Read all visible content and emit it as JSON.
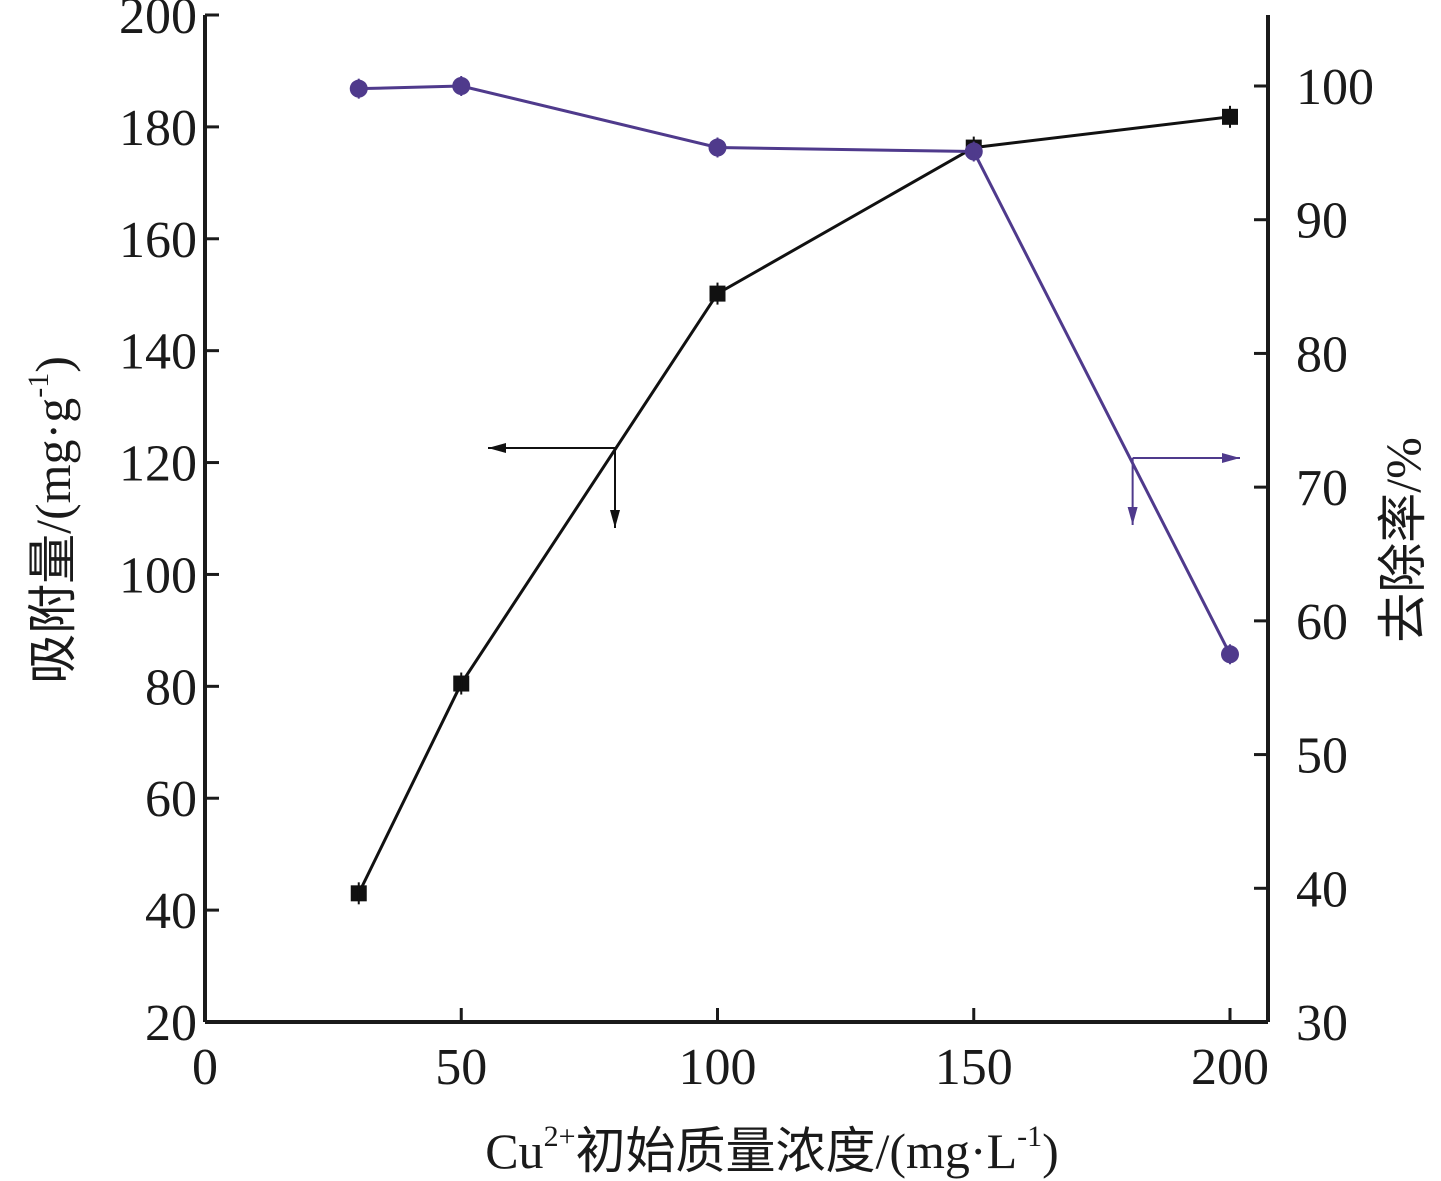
{
  "chart_data": {
    "type": "line",
    "xlabel": {
      "main": "Cu",
      "sup1": "2+",
      "rest": "初始质量浓度/(mg·L",
      "sup2": "-1",
      "end": ")"
    },
    "ylabel_left": {
      "main": "吸附量/(mg·g",
      "sup": "-1",
      "end": ")"
    },
    "ylabel_right": "去除率/%",
    "xlim": [
      0,
      200
    ],
    "ylim_left": [
      20,
      200
    ],
    "ylim_right": [
      30,
      105
    ],
    "x_ticks": [
      "0",
      "50",
      "100",
      "150",
      "200"
    ],
    "y_left_ticks": [
      "20",
      "40",
      "60",
      "80",
      "100",
      "120",
      "140",
      "160",
      "180",
      "200"
    ],
    "y_right_ticks": [
      "30",
      "40",
      "50",
      "60",
      "70",
      "80",
      "90",
      "100"
    ],
    "colors": {
      "adsorption": "#111111",
      "removal": "#4f3a8c"
    },
    "series": [
      {
        "axis": "left",
        "marker": "square",
        "x": [
          30,
          50,
          100,
          150,
          200
        ],
        "values": [
          43,
          80.5,
          150.2,
          176.3,
          181.8
        ]
      },
      {
        "axis": "right",
        "marker": "circle",
        "x": [
          30,
          50,
          100,
          150,
          200
        ],
        "values": [
          99.8,
          100.0,
          95.4,
          95.1,
          57.5
        ]
      }
    ],
    "annotations": [
      {
        "series": 0,
        "direction": "left-axis"
      },
      {
        "series": 1,
        "direction": "right-axis"
      }
    ]
  }
}
